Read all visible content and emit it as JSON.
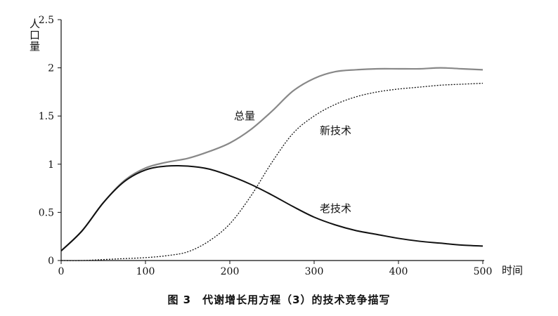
{
  "chart_data": {
    "type": "line",
    "title": "",
    "ylabel": "人口量",
    "xlabel": "时间",
    "xlim": [
      0,
      500
    ],
    "ylim": [
      0,
      2.5
    ],
    "x_ticks": [
      "0",
      "100",
      "200",
      "300",
      "400",
      "500"
    ],
    "y_ticks": [
      "0",
      "0.5",
      "1",
      "1.5",
      "2",
      "2.5"
    ],
    "x": [
      0,
      25,
      50,
      75,
      100,
      125,
      150,
      175,
      200,
      225,
      250,
      275,
      300,
      325,
      350,
      375,
      400,
      425,
      450,
      475,
      500
    ],
    "series": [
      {
        "name": "总量",
        "color": "#888888",
        "style": "solid",
        "values": [
          0.1,
          0.31,
          0.6,
          0.83,
          0.96,
          1.02,
          1.06,
          1.13,
          1.22,
          1.36,
          1.55,
          1.76,
          1.89,
          1.96,
          1.98,
          1.99,
          1.99,
          1.99,
          2.0,
          1.99,
          1.98
        ]
      },
      {
        "name": "新技术",
        "color": "#111111",
        "style": "dotted",
        "values": [
          0.0,
          0.0,
          0.01,
          0.02,
          0.03,
          0.05,
          0.09,
          0.2,
          0.38,
          0.67,
          1.02,
          1.32,
          1.5,
          1.62,
          1.7,
          1.75,
          1.78,
          1.8,
          1.82,
          1.83,
          1.84
        ]
      },
      {
        "name": "老技术",
        "color": "#111111",
        "style": "solid",
        "values": [
          0.1,
          0.31,
          0.6,
          0.82,
          0.94,
          0.98,
          0.98,
          0.95,
          0.88,
          0.79,
          0.68,
          0.56,
          0.45,
          0.37,
          0.31,
          0.27,
          0.23,
          0.2,
          0.18,
          0.16,
          0.15
        ]
      }
    ]
  },
  "caption": "图 3　代谢增长用方程（3）的技术竞争描写"
}
